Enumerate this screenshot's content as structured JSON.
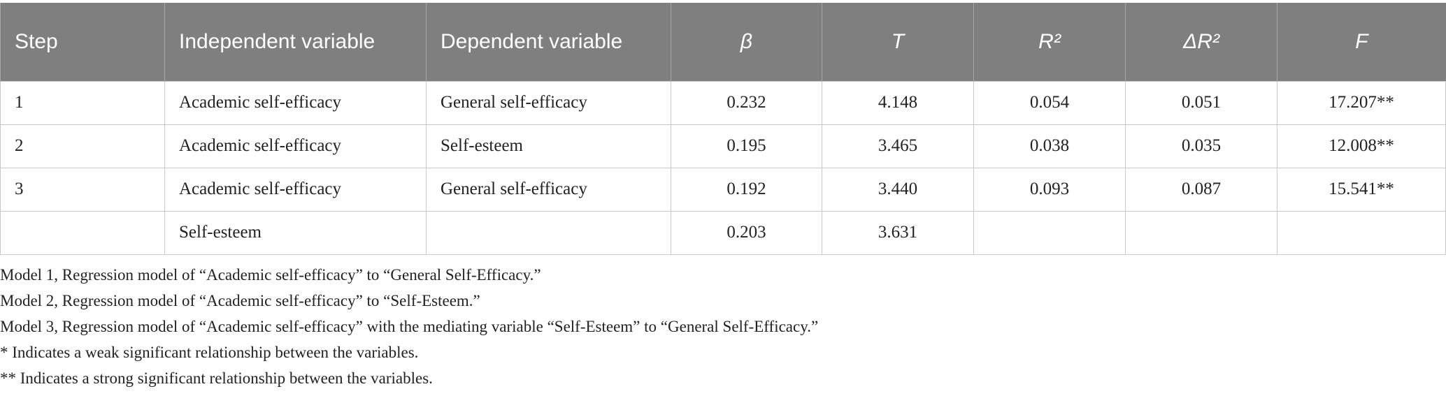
{
  "table": {
    "header": [
      "Step",
      "Independent variable",
      "Dependent variable",
      "β",
      "T",
      "R²",
      "ΔR²",
      "F"
    ],
    "rows": [
      [
        "1",
        "Academic self-efficacy",
        "General self-efficacy",
        "0.232",
        "4.148",
        "0.054",
        "0.051",
        "17.207**"
      ],
      [
        "2",
        "Academic self-efficacy",
        "Self-esteem",
        "0.195",
        "3.465",
        "0.038",
        "0.035",
        "12.008**"
      ],
      [
        "3",
        "Academic self-efficacy",
        "General self-efficacy",
        "0.192",
        "3.440",
        "0.093",
        "0.087",
        "15.541**"
      ],
      [
        null,
        "Self-esteem",
        null,
        "0.203",
        "3.631",
        null,
        null,
        null
      ]
    ]
  },
  "notes": [
    "Model 1, Regression model of “Academic self-efficacy” to “General Self-Efficacy.”",
    "Model 2, Regression model of “Academic self-efficacy” to “Self-Esteem.”",
    "Model 3, Regression model of “Academic self-efficacy” with the mediating variable “Self-Esteem” to “General Self-Efficacy.”",
    "* Indicates a weak significant relationship between the variables.",
    "** Indicates a strong significant relationship between the variables."
  ]
}
